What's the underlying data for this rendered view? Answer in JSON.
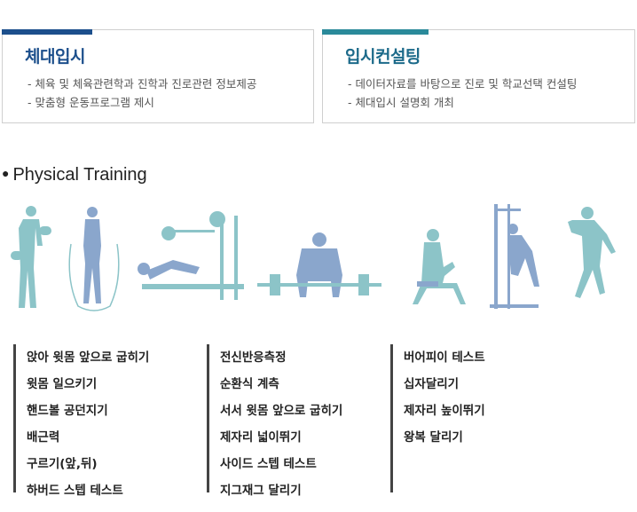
{
  "cards": [
    {
      "title": "체대입시",
      "items": [
        "체육 및 체육관련학과 진학과 진로관련 정보제공",
        "맞춤형 운동프로그램 제시"
      ]
    },
    {
      "title": "입시컨설팅",
      "items": [
        "데이터자료를 바탕으로 진로 및 학교선택 컨설팅",
        "체대입시 설명회 개최"
      ]
    }
  ],
  "section": {
    "title": "Physical Training"
  },
  "tests": {
    "col1": [
      "앉아 윗몸 앞으로 굽히기",
      "윗몸 일으키기",
      "핸드볼 공던지기",
      "배근력",
      "구르기(앞,뒤)",
      "하버드 스텝 테스트"
    ],
    "col2": [
      "전신반응측정",
      "순환식 계측",
      "서서 윗몸 앞으로 굽히기",
      "제자리 넓이뛰기",
      "사이드 스텝 테스트",
      "지그재그 달리기"
    ],
    "col3": [
      "버어피이 테스트",
      "십자달리기",
      "제자리 높이뛰기",
      "왕복 달리기"
    ]
  },
  "colors": {
    "navy": "#1c4f8c",
    "teal": "#2a8a9a",
    "figure_teal": "#8cc4c8",
    "figure_blue": "#8aa6cc"
  }
}
